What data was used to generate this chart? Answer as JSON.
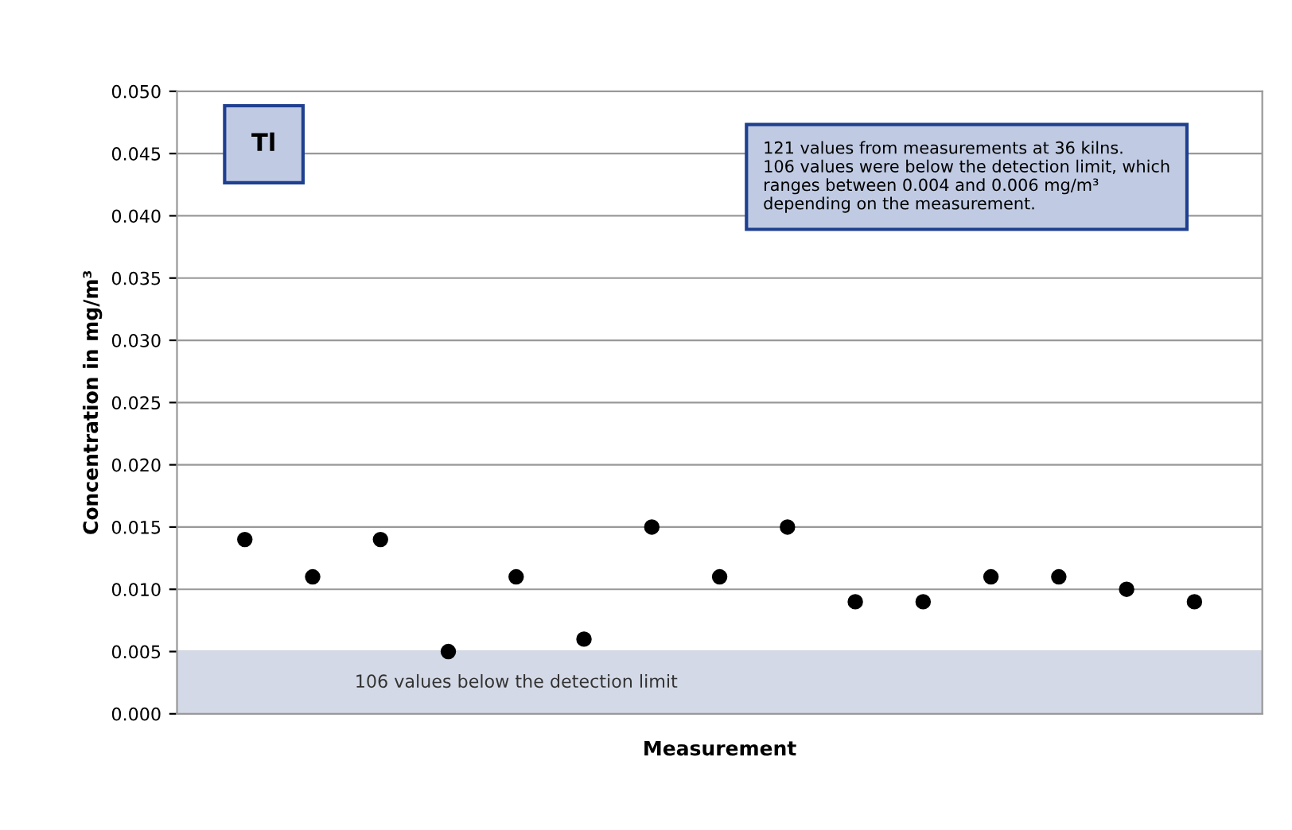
{
  "chart_data": {
    "type": "scatter",
    "title": "Tl",
    "xlabel": "Measurement",
    "ylabel": "Concentration in mg/m³",
    "categories": [
      null,
      null,
      null,
      null,
      null,
      null,
      null,
      null,
      null,
      null,
      null,
      null,
      null,
      null,
      null
    ],
    "series": [
      {
        "color": "#000000",
        "values": [
          0.014,
          0.011,
          0.014,
          0.005,
          0.011,
          0.006,
          0.015,
          0.011,
          0.015,
          0.009,
          0.009,
          0.011,
          0.011,
          0.01,
          0.009
        ]
      }
    ],
    "ylim": [
      0,
      0.05
    ],
    "yticks": [
      {
        "value": 0,
        "label": "0.000"
      },
      {
        "value": 0.005,
        "label": "0.005"
      },
      {
        "value": 0.01,
        "label": "0.010"
      },
      {
        "value": 0.015,
        "label": "0.015"
      },
      {
        "value": 0.02,
        "label": "0.020"
      },
      {
        "value": 0.025,
        "label": "0.025"
      },
      {
        "value": 0.03,
        "label": "0.030"
      },
      {
        "value": 0.035,
        "label": "0.035"
      },
      {
        "value": 0.04,
        "label": "0.040"
      },
      {
        "value": 0.045,
        "label": "0.045"
      },
      {
        "value": 0.05,
        "label": "0.050"
      }
    ],
    "bands": [
      {
        "axis": "y",
        "from": 0,
        "to": 0.005,
        "label": "106 values below the detection limit",
        "color": "#d3d9e6"
      }
    ],
    "annotations": [
      "121 values from measurements at 36 kilns.\n106 values were below the detection limit, which\nranges between 0.004 and 0.006 mg/m³\ndepending on the measurement."
    ],
    "grid": "y",
    "marker": "circle",
    "tick_labels": "y"
  }
}
